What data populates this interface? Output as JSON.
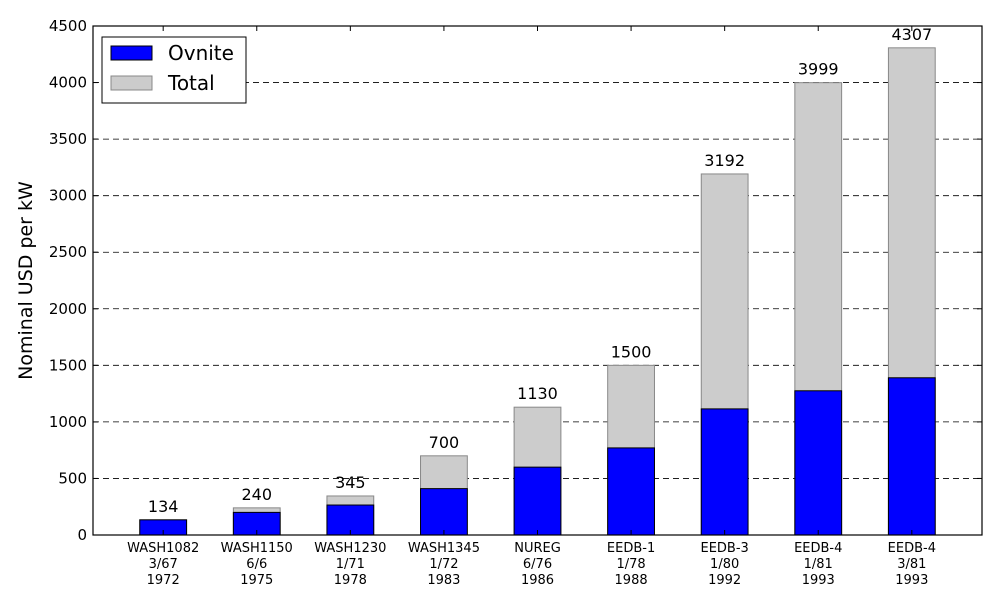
{
  "chart_data": {
    "type": "bar",
    "stacked_overlay": true,
    "ylabel": "Nominal USD per kW",
    "xlabel": "",
    "ylim": [
      0,
      4500
    ],
    "yticks": [
      0,
      500,
      1000,
      1500,
      2000,
      2500,
      3000,
      3500,
      4000,
      4500
    ],
    "grid": "y-dashed",
    "legend_position": "top-left",
    "categories": [
      [
        "WASH1082",
        "3/67",
        "1972"
      ],
      [
        "WASH1150",
        "6/6",
        "1975"
      ],
      [
        "WASH1230",
        "1/71",
        "1978"
      ],
      [
        "WASH1345",
        "1/72",
        "1983"
      ],
      [
        "NUREG",
        "6/76",
        "1986"
      ],
      [
        "EEDB-1",
        "1/78",
        "1988"
      ],
      [
        "EEDB-3",
        "1/80",
        "1992"
      ],
      [
        "EEDB-4",
        "1/81",
        "1993"
      ],
      [
        "EEDB-4",
        "3/81",
        "1993"
      ]
    ],
    "series": [
      {
        "name": "Ovnite",
        "color": "#0000ff",
        "values": [
          134,
          200,
          265,
          410,
          600,
          770,
          1115,
          1275,
          1390
        ]
      },
      {
        "name": "Total",
        "color": "#cccccc",
        "values": [
          134,
          240,
          345,
          700,
          1130,
          1500,
          3192,
          3999,
          4307
        ]
      }
    ],
    "data_labels": [
      "134",
      "240",
      "345",
      "700",
      "1130",
      "1500",
      "3192",
      "3999",
      "4307"
    ]
  }
}
